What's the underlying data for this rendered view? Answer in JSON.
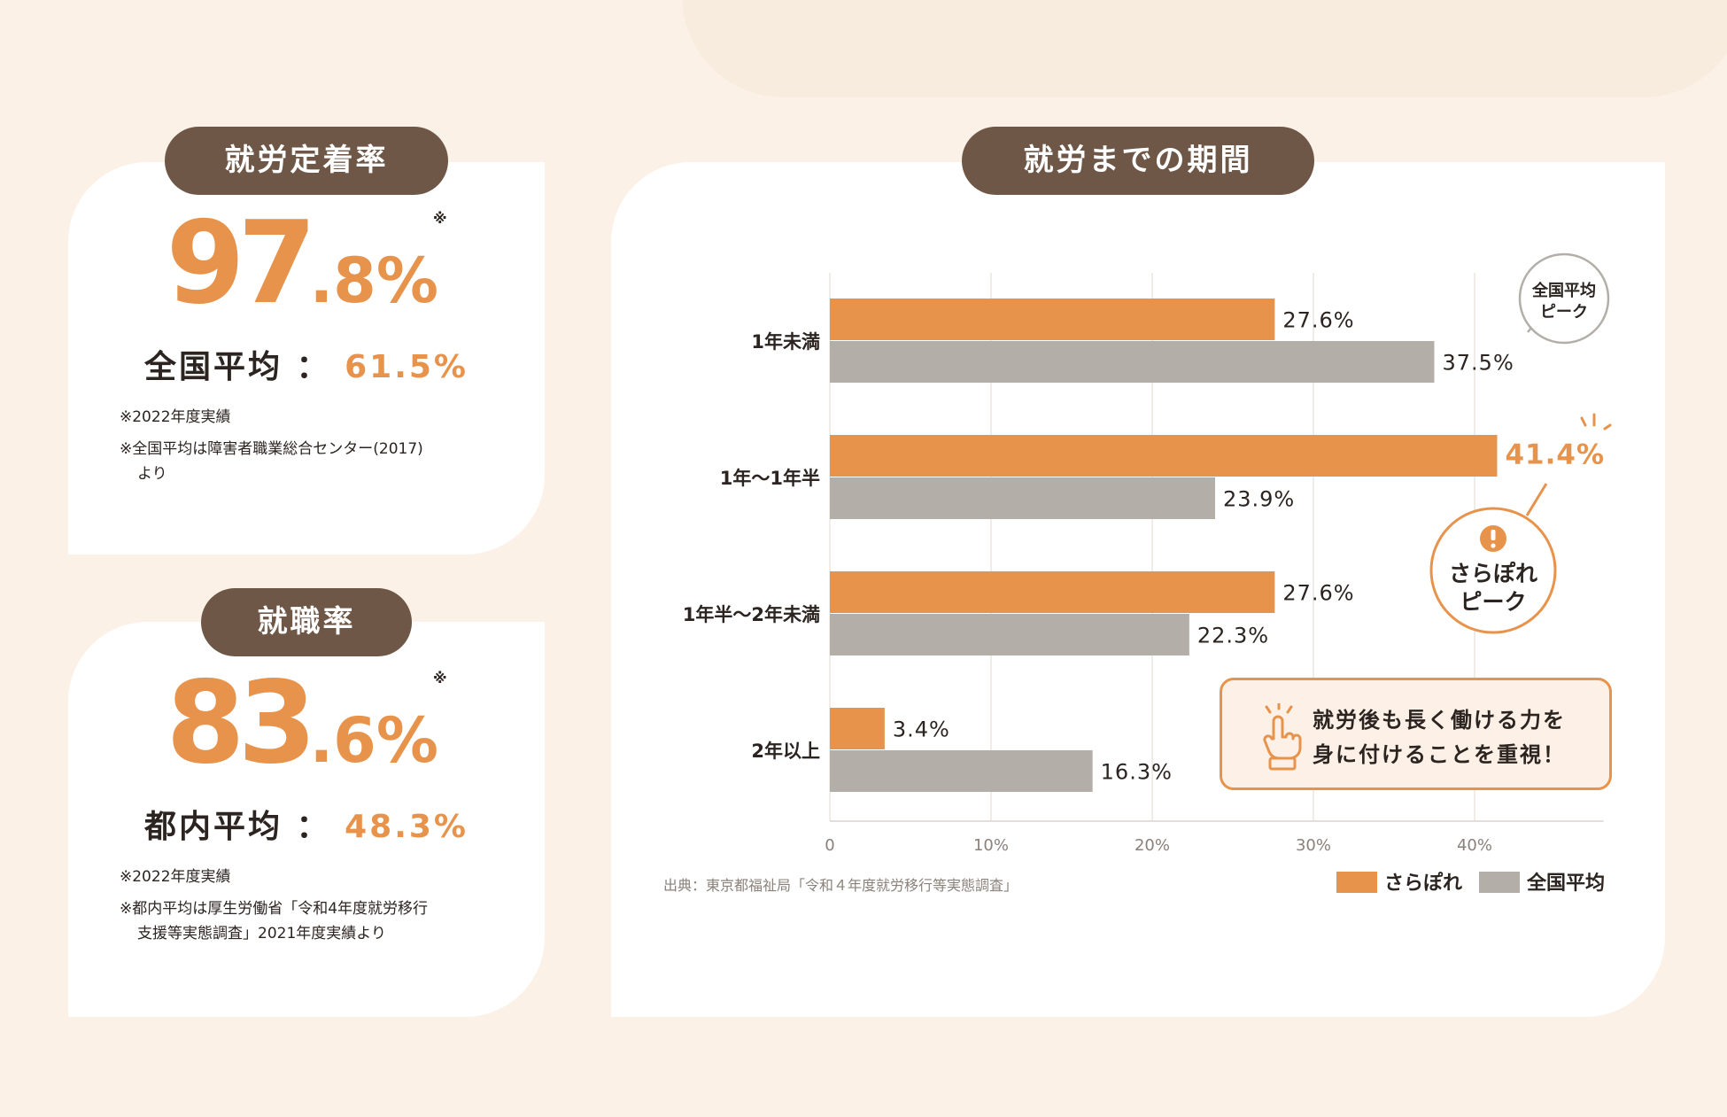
{
  "retention": {
    "title": "就労定着率",
    "value_int": "97",
    "value_dec": ".8%",
    "mark": "※",
    "avg_label": "全国平均",
    "avg_sep": "：",
    "avg_value": "61.5%",
    "note1": "※2022年度実績",
    "note2a": "※全国平均は障害者職業総合センター(2017)",
    "note2b": "より"
  },
  "employment": {
    "title": "就職率",
    "value_int": "83",
    "value_dec": ".6%",
    "mark": "※",
    "avg_label": "都内平均",
    "avg_sep": "：",
    "avg_value": "48.3%",
    "note1": "※2022年度実績",
    "note2a": "※都内平均は厚生労働省「令和4年度就労移行",
    "note2b": "支援等実態調査」2021年度実績より"
  },
  "period": {
    "title": "就労までの期間",
    "source": "出典：東京都福祉局「令和４年度就労移行等実態調査」",
    "bubble_avg": [
      "全国平均",
      "ピーク"
    ],
    "bubble_sarapore": [
      "さらぽれ",
      "ピーク"
    ],
    "callout_line1": "就労後も長く働ける力を",
    "callout_line2": "身に付けることを重視！"
  },
  "colors": {
    "accent": "#e8934b",
    "gray_bar": "#b3aea7",
    "pill": "#6e5746",
    "background": "#fbf1e6"
  },
  "chart_data": {
    "type": "bar",
    "orientation": "horizontal",
    "categories": [
      "1年未満",
      "1年～1年半",
      "1年半～2年未満",
      "2年以上"
    ],
    "series": [
      {
        "name": "さらぽれ",
        "values": [
          27.6,
          41.4,
          27.6,
          3.4
        ],
        "color": "#e8934b"
      },
      {
        "name": "全国平均",
        "values": [
          37.5,
          23.9,
          22.3,
          16.3
        ],
        "color": "#b3aea7"
      }
    ],
    "value_labels": [
      [
        "27.6%",
        "41.4%",
        "27.6%",
        "3.4%"
      ],
      [
        "37.5%",
        "23.9%",
        "22.3%",
        "16.3%"
      ]
    ],
    "xticks": [
      0,
      10,
      20,
      30,
      40
    ],
    "xtick_labels": [
      "0",
      "10%",
      "20%",
      "30%",
      "40%"
    ],
    "xlim": [
      0,
      48
    ],
    "grid": true,
    "legend_position": "bottom-right"
  }
}
